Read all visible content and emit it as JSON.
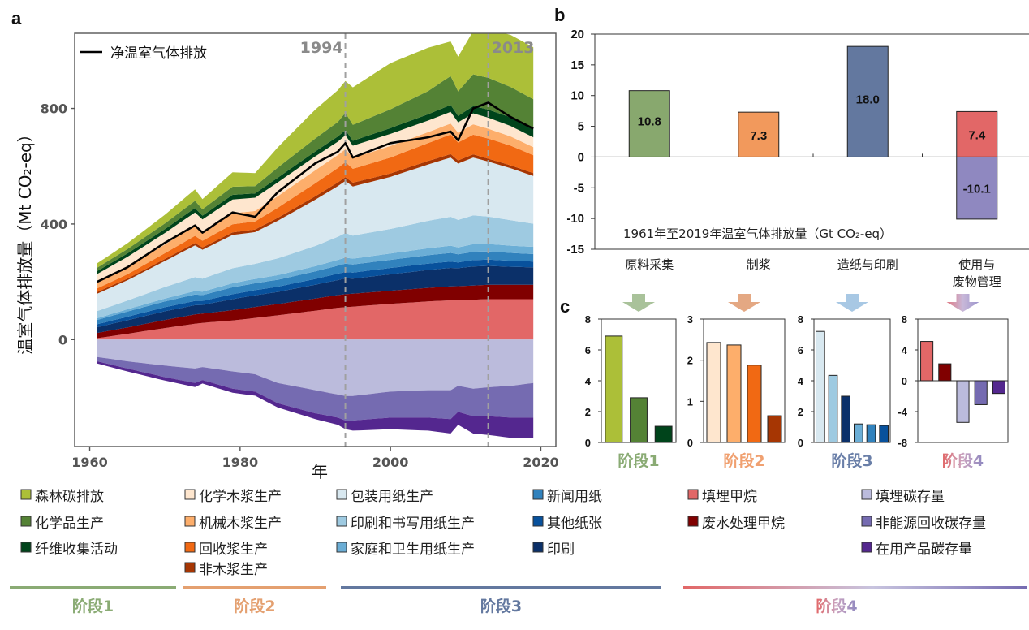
{
  "panel_letters": {
    "a": "a",
    "b": "b",
    "c": "c"
  },
  "chart_data": [
    {
      "id": "a",
      "type": "area",
      "stacked": true,
      "xlabel": "年",
      "ylabel": "温室气体排放量（Mt CO₂-eq）",
      "xlim": [
        1958,
        2022
      ],
      "ylim": [
        -370,
        1060
      ],
      "xticks": [
        1960,
        1980,
        2000,
        2020
      ],
      "yticks": [
        0,
        400,
        800
      ],
      "annotations": [
        {
          "label": "1994",
          "x": 1994,
          "style": "dashed vertical line"
        },
        {
          "label": "2013",
          "x": 2013,
          "style": "dashed vertical line"
        }
      ],
      "legend": {
        "label": "净温室气体排放",
        "placement": "top-left"
      },
      "years_anchor": [
        1961,
        1965,
        1970,
        1974,
        1975,
        1979,
        1982,
        1985,
        1990,
        1993,
        1994,
        1995,
        2000,
        2005,
        2008,
        2009,
        2011,
        2013,
        2016,
        2019
      ],
      "positive_series": [
        {
          "name": "填埋甲烷",
          "color": "#e26767",
          "values": [
            5,
            20,
            40,
            55,
            58,
            66,
            75,
            84,
            100,
            110,
            112,
            114,
            124,
            132,
            136,
            137,
            138,
            140,
            140,
            140
          ]
        },
        {
          "name": "废水处理甲烷",
          "color": "#800000",
          "values": [
            18,
            22,
            28,
            32,
            32,
            36,
            38,
            39,
            42,
            44,
            45,
            45,
            45,
            47,
            48,
            48,
            49,
            50,
            50,
            50
          ]
        },
        {
          "name": "印刷",
          "color": "#0b3069",
          "values": [
            20,
            25,
            30,
            32,
            30,
            38,
            40,
            42,
            48,
            52,
            55,
            52,
            57,
            62,
            64,
            62,
            66,
            65,
            62,
            60
          ]
        },
        {
          "name": "其他纸张",
          "color": "#08519c",
          "values": [
            10,
            12,
            14,
            15,
            14,
            17,
            18,
            18,
            20,
            22,
            22,
            21,
            22,
            22,
            22,
            20,
            22,
            22,
            21,
            20
          ]
        },
        {
          "name": "新闻用纸",
          "color": "#3182bd",
          "values": [
            15,
            18,
            20,
            22,
            20,
            24,
            24,
            24,
            26,
            28,
            29,
            28,
            28,
            29,
            30,
            28,
            29,
            28,
            27,
            26
          ]
        },
        {
          "name": "家庭和卫生用纸生产",
          "color": "#6baed6",
          "values": [
            6,
            8,
            10,
            12,
            12,
            14,
            15,
            16,
            18,
            20,
            21,
            20,
            22,
            24,
            25,
            24,
            26,
            26,
            25,
            25
          ]
        },
        {
          "name": "印刷和书写用纸生产",
          "color": "#9ecae1",
          "values": [
            25,
            30,
            40,
            48,
            45,
            52,
            52,
            58,
            70,
            80,
            85,
            80,
            85,
            95,
            100,
            95,
            100,
            95,
            88,
            80
          ]
        },
        {
          "name": "包装用纸生产",
          "color": "#d8e8f0",
          "values": [
            60,
            70,
            90,
            110,
            100,
            115,
            110,
            130,
            160,
            175,
            180,
            170,
            180,
            195,
            205,
            195,
            200,
            190,
            180,
            165
          ]
        },
        {
          "name": "非木浆生产",
          "color": "#a63603",
          "values": [
            6,
            6,
            7,
            8,
            8,
            9,
            9,
            10,
            12,
            13,
            13,
            13,
            12,
            12,
            12,
            11,
            11,
            10,
            10,
            10
          ]
        },
        {
          "name": "回收浆生产",
          "color": "#f16913",
          "values": [
            12,
            15,
            20,
            25,
            23,
            28,
            28,
            35,
            45,
            50,
            52,
            48,
            55,
            62,
            68,
            62,
            68,
            70,
            68,
            62
          ]
        },
        {
          "name": "机械木浆生产",
          "color": "#fdae6b",
          "values": [
            20,
            25,
            30,
            36,
            32,
            38,
            36,
            40,
            45,
            45,
            45,
            38,
            40,
            38,
            38,
            34,
            36,
            34,
            32,
            28
          ]
        },
        {
          "name": "化学木浆生产",
          "color": "#fee6ce",
          "values": [
            30,
            35,
            40,
            45,
            42,
            48,
            46,
            48,
            48,
            46,
            48,
            42,
            42,
            40,
            40,
            36,
            38,
            38,
            36,
            34
          ]
        },
        {
          "name": "纤维收集活动",
          "color": "#00441b",
          "values": [
            10,
            12,
            13,
            15,
            13,
            16,
            15,
            16,
            17,
            18,
            18,
            17,
            20,
            22,
            24,
            22,
            25,
            28,
            30,
            32
          ]
        },
        {
          "name": "化学品生产",
          "color": "#548235",
          "values": [
            12,
            15,
            20,
            25,
            22,
            28,
            25,
            35,
            45,
            50,
            60,
            55,
            65,
            80,
            100,
            85,
            110,
            110,
            105,
            100
          ]
        },
        {
          "name": "森林碳排放",
          "color": "#acbf38",
          "values": [
            15,
            20,
            30,
            40,
            35,
            50,
            45,
            70,
            100,
            110,
            110,
            130,
            160,
            150,
            120,
            120,
            150,
            170,
            180,
            180
          ]
        }
      ],
      "negative_series": [
        {
          "name": "填埋碳存量",
          "color": "#bbbbdc",
          "values": [
            -60,
            -75,
            -90,
            -100,
            -95,
            -110,
            -120,
            -150,
            -175,
            -190,
            -195,
            -195,
            -180,
            -175,
            -175,
            -160,
            -170,
            -165,
            -160,
            -150
          ]
        },
        {
          "name": "非能源回收碳存量",
          "color": "#756bb1",
          "values": [
            -15,
            -25,
            -40,
            -50,
            -45,
            -60,
            -60,
            -70,
            -80,
            -80,
            -85,
            -85,
            -90,
            -95,
            -100,
            -90,
            -95,
            -100,
            -110,
            -120
          ]
        },
        {
          "name": "在用产品碳存量",
          "color": "#54278f",
          "values": [
            -8,
            -10,
            -12,
            -14,
            -12,
            -14,
            -14,
            -15,
            -20,
            -25,
            -30,
            -35,
            -40,
            -45,
            -50,
            -45,
            -60,
            -65,
            -70,
            -70
          ]
        }
      ],
      "net_line": {
        "name": "净温室气体排放",
        "color": "#000000",
        "values": [
          200,
          250,
          335,
          395,
          370,
          440,
          425,
          510,
          610,
          650,
          680,
          630,
          680,
          700,
          720,
          690,
          800,
          820,
          770,
          730
        ]
      }
    },
    {
      "id": "b",
      "type": "bar",
      "title": "1961年至2019年温室气体排放量（Gt CO₂-eq）",
      "ylim": [
        -15,
        20
      ],
      "yticks": [
        -15,
        -10,
        -5,
        0,
        5,
        10,
        15,
        20
      ],
      "categories": [
        "原料采集",
        "制浆",
        "造纸与印刷",
        "使用与\n废物管理"
      ],
      "category_lines": [
        [
          "原料采集"
        ],
        [
          "制浆"
        ],
        [
          "造纸与印刷"
        ],
        [
          "使用与",
          "废物管理"
        ]
      ],
      "bars": [
        {
          "category_index": 0,
          "value": 10.8,
          "label": "10.8",
          "color": "#88a86e"
        },
        {
          "category_index": 1,
          "value": 7.3,
          "label": "7.3",
          "color": "#f2995c"
        },
        {
          "category_index": 2,
          "value": 18.0,
          "label": "18.0",
          "color": "#63789f"
        },
        {
          "category_index": 3,
          "value": 7.4,
          "label": "7.4",
          "color": "#e26767"
        },
        {
          "category_index": 3,
          "value": -10.1,
          "label": "-10.1",
          "color": "#8f88c0"
        }
      ]
    },
    {
      "id": "c1",
      "type": "bar",
      "title": "阶段1",
      "title_color": "#8aab74",
      "arrow_colors": [
        "#a9c29a",
        "#a9c29a"
      ],
      "ylim": [
        0,
        8
      ],
      "yticks": [
        0,
        2,
        4,
        6,
        8
      ],
      "values": [
        6.9,
        2.9,
        1.05
      ],
      "colors": [
        "#acbf38",
        "#548235",
        "#00441b"
      ]
    },
    {
      "id": "c2",
      "type": "bar",
      "title": "阶段2",
      "title_color": "#f0a070",
      "arrow_colors": [
        "#e4a883",
        "#e4a883"
      ],
      "ylim": [
        0,
        3
      ],
      "yticks": [
        0,
        1,
        2,
        3
      ],
      "values": [
        2.43,
        2.37,
        1.88,
        0.65
      ],
      "colors": [
        "#fee6ce",
        "#fdae6b",
        "#f16913",
        "#a63603"
      ]
    },
    {
      "id": "c3",
      "type": "bar",
      "title": "阶段3",
      "title_color": "#6a7fa8",
      "arrow_colors": [
        "#a8c8e4",
        "#a8c8e4"
      ],
      "ylim": [
        0,
        8
      ],
      "yticks": [
        0,
        2,
        4,
        6,
        8
      ],
      "values": [
        7.2,
        4.35,
        3.0,
        1.2,
        1.15,
        1.1
      ],
      "colors": [
        "#d8e8f0",
        "#9ecae1",
        "#0b3069",
        "#6baed6",
        "#3182bd",
        "#08519c"
      ]
    },
    {
      "id": "c4",
      "type": "bar",
      "title": "阶段4",
      "title_color": "#e07a84",
      "title_color_end": "#8f88c0",
      "arrow_colors": [
        "#e07a84",
        "#9b94cc"
      ],
      "ylim": [
        -8,
        8
      ],
      "yticks": [
        -8,
        -4,
        0,
        4,
        8
      ],
      "values": [
        5.1,
        2.2,
        -5.4,
        -3.1,
        -1.65
      ],
      "colors": [
        "#e26767",
        "#800000",
        "#bbbbdc",
        "#756bb1",
        "#54278f"
      ]
    }
  ],
  "legend": {
    "columns": [
      [
        {
          "label": "森林碳排放",
          "color": "#acbf38"
        },
        {
          "label": "化学品生产",
          "color": "#548235"
        },
        {
          "label": "纤维收集活动",
          "color": "#00441b"
        }
      ],
      [
        {
          "label": "化学木浆生产",
          "color": "#fee6ce"
        },
        {
          "label": "机械木浆生产",
          "color": "#fdae6b"
        },
        {
          "label": "回收浆生产",
          "color": "#f16913"
        },
        {
          "label": "非木浆生产",
          "color": "#a63603"
        }
      ],
      [
        {
          "label": "包装用纸生产",
          "color": "#d8e8f0"
        },
        {
          "label": "印刷和书写用纸生产",
          "color": "#9ecae1"
        },
        {
          "label": "家庭和卫生用纸生产",
          "color": "#6baed6"
        }
      ],
      [
        {
          "label": "新闻用纸",
          "color": "#3182bd"
        },
        {
          "label": "其他纸张",
          "color": "#08519c"
        },
        {
          "label": "印刷",
          "color": "#0b3069"
        }
      ],
      [
        {
          "label": "填埋甲烷",
          "color": "#e26767"
        },
        {
          "label": "废水处理甲烷",
          "color": "#800000"
        }
      ],
      [
        {
          "label": "填埋碳存量",
          "color": "#bbbbdc"
        },
        {
          "label": "非能源回收碳存量",
          "color": "#756bb1"
        },
        {
          "label": "在用产品碳存量",
          "color": "#54278f"
        }
      ]
    ],
    "stages": [
      {
        "label": "阶段1",
        "color": "#8aab74"
      },
      {
        "label": "阶段2",
        "color": "#e4a070"
      },
      {
        "label": "阶段3",
        "color": "#63789f"
      },
      {
        "label": "阶段4",
        "color": "#e26767",
        "color_end": "#8f88c0"
      }
    ]
  }
}
